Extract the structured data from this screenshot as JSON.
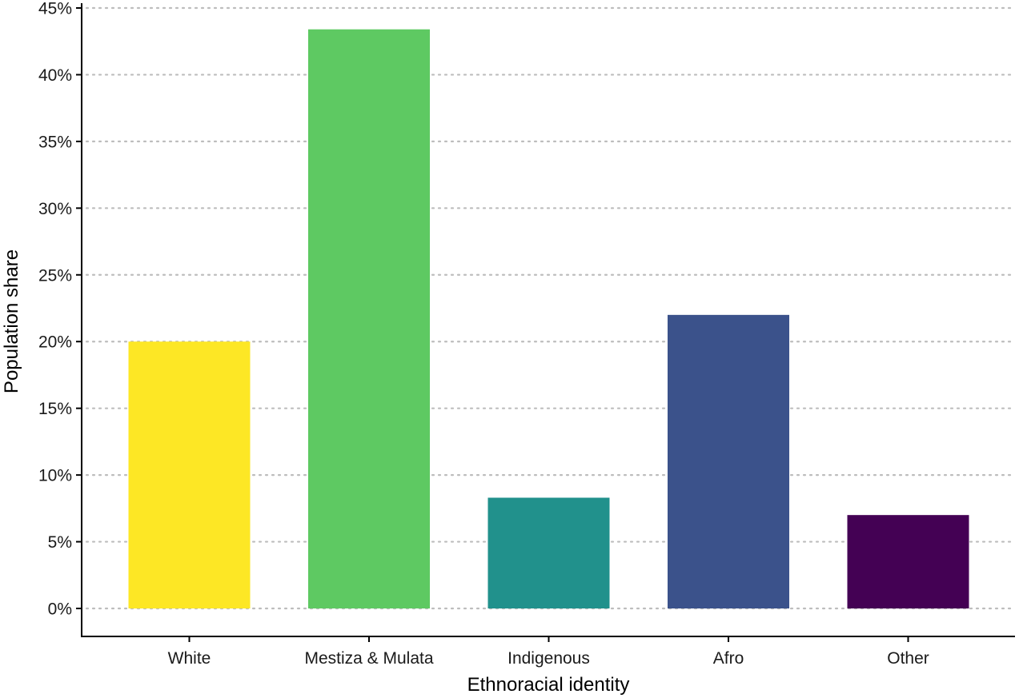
{
  "chart_data": {
    "type": "bar",
    "title": "",
    "xlabel": "Ethnoracial identity",
    "ylabel": "Population share",
    "categories": [
      "White",
      "Mestiza & Mulata",
      "Indigenous",
      "Afro",
      "Other"
    ],
    "values": [
      20.0,
      43.4,
      8.3,
      22.0,
      7.0
    ],
    "colors": [
      "#fde725",
      "#5ec962",
      "#21918c",
      "#3b528b",
      "#440154"
    ],
    "ylim": [
      0,
      45
    ],
    "yticks": [
      0,
      5,
      10,
      15,
      20,
      25,
      30,
      35,
      40,
      45
    ],
    "ytick_labels": [
      "0%",
      "5%",
      "10%",
      "15%",
      "20%",
      "25%",
      "30%",
      "35%",
      "40%",
      "45%"
    ],
    "grid": "horizontal-dotted",
    "legend": "none"
  }
}
